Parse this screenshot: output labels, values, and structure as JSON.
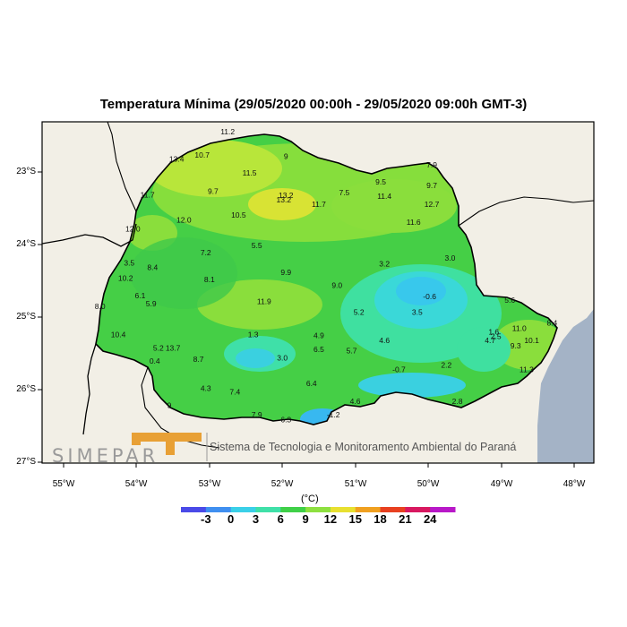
{
  "title": "Temperatura Mínima (29/05/2020 00:00h - 29/05/2020 09:00h GMT-3)",
  "unit": "(°C)",
  "latitude_labels": [
    "23°S",
    "24°S",
    "25°S",
    "26°S",
    "27°S"
  ],
  "longitude_labels": [
    "55°W",
    "54°W",
    "53°W",
    "52°W",
    "51°W",
    "50°W",
    "49°W",
    "48°W"
  ],
  "colorbar": {
    "labels": [
      "-3",
      "0",
      "3",
      "6",
      "9",
      "12",
      "15",
      "18",
      "21",
      "24"
    ],
    "colors": [
      "#4a4ae8",
      "#3f8ff0",
      "#3ad0e8",
      "#3fe0a8",
      "#3fd048",
      "#8ee040",
      "#e8e030",
      "#f0a020",
      "#e84020",
      "#d81860",
      "#b818c8"
    ]
  },
  "logo": {
    "text": "SIMEPAR",
    "agency": "Sistema de Tecnologia e Monitoramento Ambiental do Paraná"
  },
  "colors": {
    "ocean": "#a4b3c6",
    "land": "#f2efe6",
    "frame": "#000000"
  },
  "observations": [
    {
      "v": "11.2",
      "lon": -52.75,
      "lat": -22.48
    },
    {
      "v": "10.7",
      "lon": -53.1,
      "lat": -22.8
    },
    {
      "v": "9",
      "lon": -51.95,
      "lat": -22.82
    },
    {
      "v": "13.4",
      "lon": -53.45,
      "lat": -22.86
    },
    {
      "v": "11.5",
      "lon": -52.45,
      "lat": -23.05
    },
    {
      "v": "7.9",
      "lon": -49.95,
      "lat": -22.94
    },
    {
      "v": "9.5",
      "lon": -50.65,
      "lat": -23.17
    },
    {
      "v": "9.7",
      "lon": -49.95,
      "lat": -23.22
    },
    {
      "v": "11.7",
      "lon": -53.85,
      "lat": -23.35
    },
    {
      "v": "9.7",
      "lon": -52.95,
      "lat": -23.3
    },
    {
      "v": "13.2",
      "lon": -51.95,
      "lat": -23.36
    },
    {
      "v": "13.2",
      "lon": -51.98,
      "lat": -23.42
    },
    {
      "v": "7.5",
      "lon": -51.15,
      "lat": -23.32
    },
    {
      "v": "11.4",
      "lon": -50.6,
      "lat": -23.37
    },
    {
      "v": "11.7",
      "lon": -51.5,
      "lat": -23.48
    },
    {
      "v": "12.7",
      "lon": -49.95,
      "lat": -23.48
    },
    {
      "v": "10.5",
      "lon": -52.6,
      "lat": -23.63
    },
    {
      "v": "12.0",
      "lon": -53.35,
      "lat": -23.7
    },
    {
      "v": "11.6",
      "lon": -50.2,
      "lat": -23.73
    },
    {
      "v": "12.0",
      "lon": -54.05,
      "lat": -23.82
    },
    {
      "v": "5.5",
      "lon": -52.35,
      "lat": -24.05
    },
    {
      "v": "7.2",
      "lon": -53.05,
      "lat": -24.15
    },
    {
      "v": "3.0",
      "lon": -49.7,
      "lat": -24.22
    },
    {
      "v": "3.5",
      "lon": -54.1,
      "lat": -24.29
    },
    {
      "v": "3.2",
      "lon": -50.6,
      "lat": -24.3
    },
    {
      "v": "8.4",
      "lon": -53.78,
      "lat": -24.35
    },
    {
      "v": "9.9",
      "lon": -51.95,
      "lat": -24.42
    },
    {
      "v": "10.2",
      "lon": -54.15,
      "lat": -24.5
    },
    {
      "v": "8.1",
      "lon": -53.0,
      "lat": -24.52
    },
    {
      "v": "9.0",
      "lon": -51.25,
      "lat": -24.6
    },
    {
      "v": "6.1",
      "lon": -53.95,
      "lat": -24.74
    },
    {
      "v": "-0.6",
      "lon": -49.98,
      "lat": -24.75
    },
    {
      "v": "5.6",
      "lon": -48.88,
      "lat": -24.8
    },
    {
      "v": "5.9",
      "lon": -53.8,
      "lat": -24.85
    },
    {
      "v": "8.0",
      "lon": -54.5,
      "lat": -24.89
    },
    {
      "v": "11.9",
      "lon": -52.25,
      "lat": -24.82
    },
    {
      "v": "5.2",
      "lon": -50.95,
      "lat": -24.97
    },
    {
      "v": "3.5",
      "lon": -50.15,
      "lat": -24.97
    },
    {
      "v": "8.4",
      "lon": -48.3,
      "lat": -25.12
    },
    {
      "v": "11.0",
      "lon": -48.75,
      "lat": -25.19
    },
    {
      "v": "10.4",
      "lon": -54.25,
      "lat": -25.28
    },
    {
      "v": "1.3",
      "lon": -52.4,
      "lat": -25.28
    },
    {
      "v": "4.9",
      "lon": -51.5,
      "lat": -25.29
    },
    {
      "v": "1.6",
      "lon": -49.1,
      "lat": -25.24
    },
    {
      "v": "2.5",
      "lon": -49.07,
      "lat": -25.3
    },
    {
      "v": "4.6",
      "lon": -50.6,
      "lat": -25.36
    },
    {
      "v": "4.7",
      "lon": -49.15,
      "lat": -25.36
    },
    {
      "v": "10.1",
      "lon": -48.58,
      "lat": -25.36
    },
    {
      "v": "5.2",
      "lon": -53.7,
      "lat": -25.46
    },
    {
      "v": "13.7",
      "lon": -53.5,
      "lat": -25.46
    },
    {
      "v": "6.5",
      "lon": -51.5,
      "lat": -25.48
    },
    {
      "v": "5.7",
      "lon": -51.05,
      "lat": -25.5
    },
    {
      "v": "9.3",
      "lon": -48.8,
      "lat": -25.43
    },
    {
      "v": "3.0",
      "lon": -52.0,
      "lat": -25.6
    },
    {
      "v": "0.4",
      "lon": -53.75,
      "lat": -25.64
    },
    {
      "v": "8.7",
      "lon": -53.15,
      "lat": -25.62
    },
    {
      "v": "2.2",
      "lon": -49.75,
      "lat": -25.7
    },
    {
      "v": "-0.7",
      "lon": -50.4,
      "lat": -25.76
    },
    {
      "v": "11.3",
      "lon": -48.65,
      "lat": -25.76
    },
    {
      "v": "6.4",
      "lon": -51.6,
      "lat": -25.95
    },
    {
      "v": "4.3",
      "lon": -53.05,
      "lat": -26.02
    },
    {
      "v": "7.4",
      "lon": -52.65,
      "lat": -26.07
    },
    {
      "v": "4.6",
      "lon": -51.0,
      "lat": -26.2
    },
    {
      "v": "2.8",
      "lon": -49.6,
      "lat": -26.2
    },
    {
      "v": "9",
      "lon": -53.55,
      "lat": -26.25
    },
    {
      "v": "-1.2",
      "lon": -51.3,
      "lat": -26.38
    },
    {
      "v": "7.9",
      "lon": -52.35,
      "lat": -26.38
    },
    {
      "v": "6.3",
      "lon": -51.95,
      "lat": -26.45
    }
  ]
}
